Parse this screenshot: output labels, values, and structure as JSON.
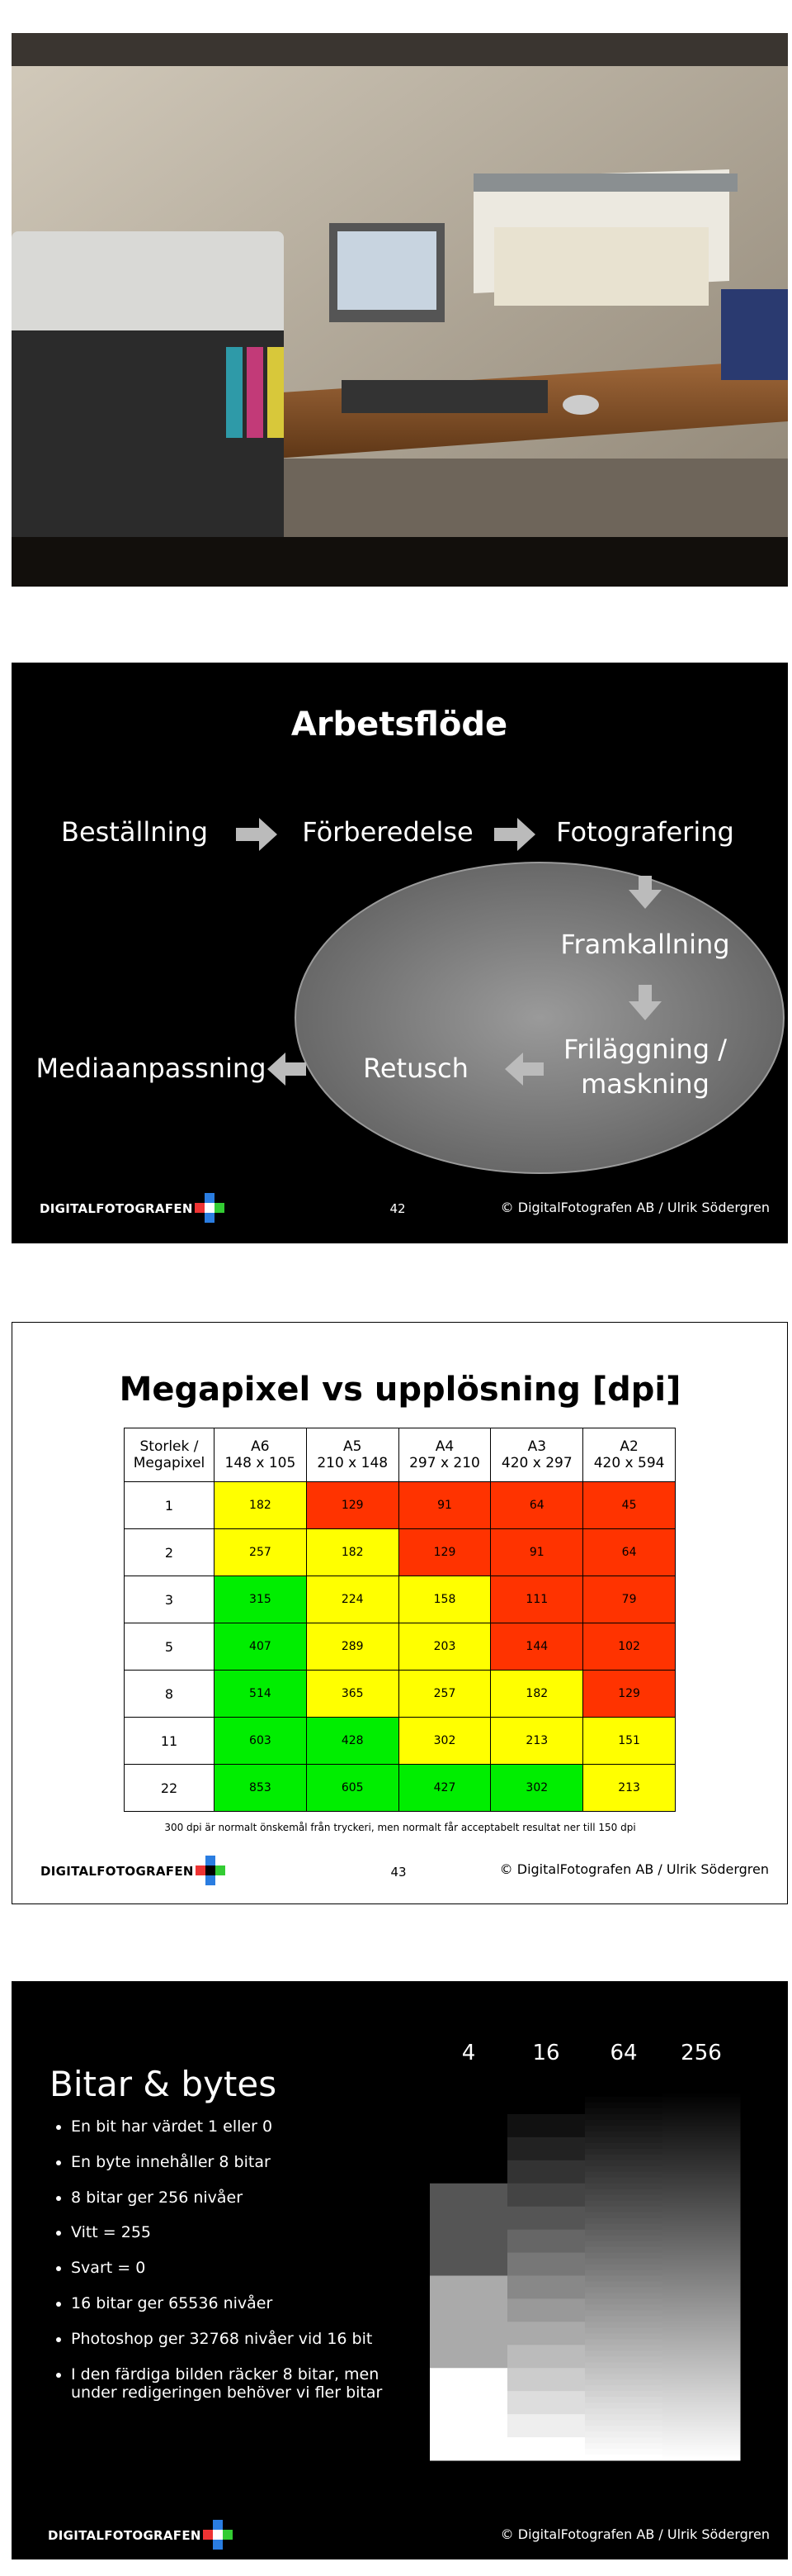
{
  "workflow": {
    "title": "Arbetsflöde",
    "steps": [
      "Beställning",
      "Förberedelse",
      "Fotografering",
      "Framkallning",
      "Friläggning / maskning",
      "Retusch",
      "Mediaanpassning"
    ],
    "footer": {
      "logo": "DIGITALFOTOGRAFEN",
      "page": "42",
      "copyright": "© DigitalFotografen AB / Ulrik Södergren"
    }
  },
  "megapixel": {
    "title": "Megapixel vs upplösning [dpi]",
    "corner": "Storlek / Megapixel",
    "header": [
      {
        "name": "A6",
        "size": "148 x 105"
      },
      {
        "name": "A5",
        "size": "210 x 148"
      },
      {
        "name": "A4",
        "size": "297 x 210"
      },
      {
        "name": "A3",
        "size": "420 x 297"
      },
      {
        "name": "A2",
        "size": "420 x 594"
      }
    ],
    "rows": [
      {
        "label": "1",
        "cells": [
          182,
          129,
          91,
          64,
          45
        ],
        "colors": [
          "#ffff00",
          "#ff3300",
          "#ff3300",
          "#ff3300",
          "#ff3300"
        ]
      },
      {
        "label": "2",
        "cells": [
          257,
          182,
          129,
          91,
          64
        ],
        "colors": [
          "#ffff00",
          "#ffff00",
          "#ff3300",
          "#ff3300",
          "#ff3300"
        ]
      },
      {
        "label": "3",
        "cells": [
          315,
          224,
          158,
          111,
          79
        ],
        "colors": [
          "#00ee00",
          "#ffff00",
          "#ffff00",
          "#ff3300",
          "#ff3300"
        ]
      },
      {
        "label": "5",
        "cells": [
          407,
          289,
          203,
          144,
          102
        ],
        "colors": [
          "#00ee00",
          "#ffff00",
          "#ffff00",
          "#ff3300",
          "#ff3300"
        ]
      },
      {
        "label": "8",
        "cells": [
          514,
          365,
          257,
          182,
          129
        ],
        "colors": [
          "#00ee00",
          "#ffff00",
          "#ffff00",
          "#ffff00",
          "#ff3300"
        ]
      },
      {
        "label": "11",
        "cells": [
          603,
          428,
          302,
          213,
          151
        ],
        "colors": [
          "#00ee00",
          "#00ee00",
          "#ffff00",
          "#ffff00",
          "#ffff00"
        ]
      },
      {
        "label": "22",
        "cells": [
          853,
          605,
          427,
          302,
          213
        ],
        "colors": [
          "#00ee00",
          "#00ee00",
          "#00ee00",
          "#00ee00",
          "#ffff00"
        ]
      }
    ],
    "note": "300 dpi är normalt önskemål från tryckeri, men normalt får acceptabelt resultat ner till 150 dpi",
    "footer": {
      "logo": "DIGITALFOTOGRAFEN",
      "page": "43",
      "copyright": "© DigitalFotografen AB / Ulrik Södergren"
    }
  },
  "bits": {
    "title": "Bitar & bytes",
    "bullets": [
      "En bit har värdet 1 eller 0",
      "En byte innehåller 8 bitar",
      "8 bitar ger 256 nivåer",
      "Vitt = 255",
      "Svart = 0",
      "16 bitar ger 65536 nivåer",
      "Photoshop ger 32768 nivåer vid 16 bit",
      "I den färdiga bilden räcker 8 bitar, men under redigeringen behöver vi fler bitar"
    ],
    "levels": [
      4,
      16,
      64,
      256
    ],
    "footer": {
      "logo": "DIGITALFOTOGRAFEN",
      "copyright": "© DigitalFotografen AB / Ulrik Södergren"
    }
  }
}
